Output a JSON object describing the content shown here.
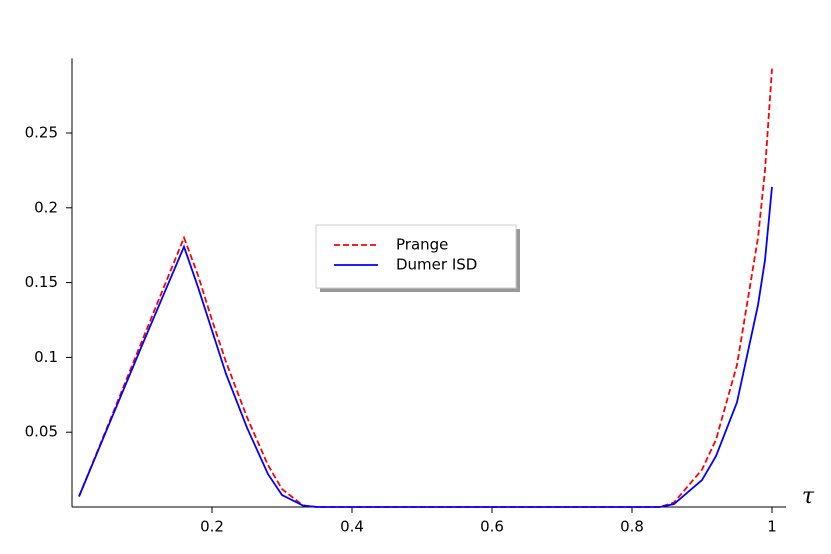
{
  "chart_data": {
    "type": "line",
    "x_label": "τ",
    "x": [
      0.01,
      0.05,
      0.1,
      0.16,
      0.18,
      0.2,
      0.22,
      0.25,
      0.28,
      0.3,
      0.33,
      0.35,
      0.5,
      0.7,
      0.84,
      0.86,
      0.9,
      0.92,
      0.95,
      0.98,
      0.99,
      1.0
    ],
    "series": [
      {
        "name": "Prange",
        "color": "#ff0000",
        "linestyle": "dashed",
        "values": [
          0.007,
          0.053,
          0.111,
          0.18,
          0.155,
          0.125,
          0.097,
          0.06,
          0.028,
          0.012,
          0.001,
          0,
          0,
          0,
          0,
          0.003,
          0.025,
          0.045,
          0.095,
          0.18,
          0.225,
          0.293
        ]
      },
      {
        "name": "Dumer ISD",
        "color": "#0000ff",
        "linestyle": "solid",
        "values": [
          0.007,
          0.052,
          0.108,
          0.174,
          0.147,
          0.118,
          0.089,
          0.053,
          0.022,
          0.008,
          0.001,
          0,
          0,
          0,
          0,
          0.002,
          0.018,
          0.034,
          0.07,
          0.135,
          0.165,
          0.214
        ]
      }
    ],
    "xlim": [
      0,
      1.02
    ],
    "ylim": [
      0,
      0.3
    ],
    "xticks": [
      0.2,
      0.4,
      0.6,
      0.8,
      1
    ],
    "yticks": [
      0.05,
      0.1,
      0.15,
      0.2,
      0.25
    ]
  }
}
